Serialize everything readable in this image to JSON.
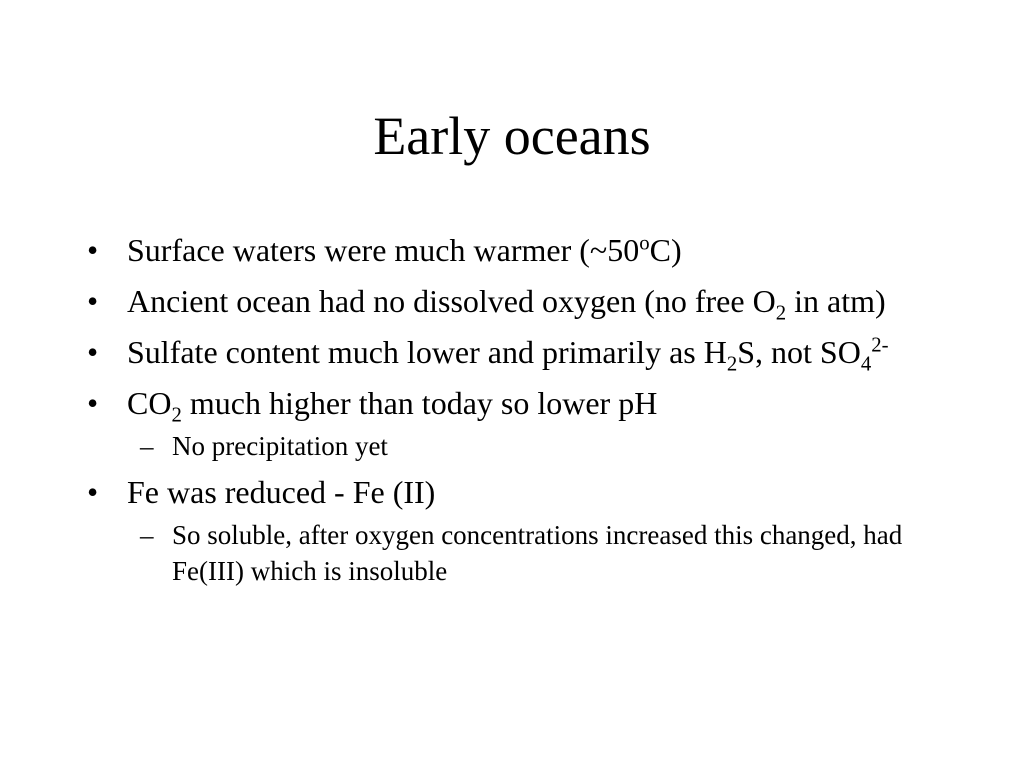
{
  "slide": {
    "title": "Early oceans",
    "bullets": [
      {
        "runs": [
          "Surface waters were much warmer (~50",
          {
            "sup": "o"
          },
          "C)"
        ]
      },
      {
        "runs": [
          "Ancient ocean had no dissolved oxygen (no free O",
          {
            "sub": "2"
          },
          " in atm)"
        ]
      },
      {
        "runs": [
          "Sulfate content much lower and primarily as H",
          {
            "sub": "2"
          },
          "S, not SO",
          {
            "sub": "4"
          },
          {
            "sup": "2-"
          }
        ]
      },
      {
        "runs": [
          "CO",
          {
            "sub": "2"
          },
          " much higher than today so lower pH"
        ],
        "subbullets": [
          {
            "runs": [
              "No precipitation yet"
            ]
          }
        ]
      },
      {
        "runs": [
          "Fe was reduced - Fe (II)"
        ],
        "subbullets": [
          {
            "runs": [
              "So soluble, after oxygen concentrations increased this changed, had Fe(III) which is insoluble"
            ]
          }
        ]
      }
    ]
  }
}
